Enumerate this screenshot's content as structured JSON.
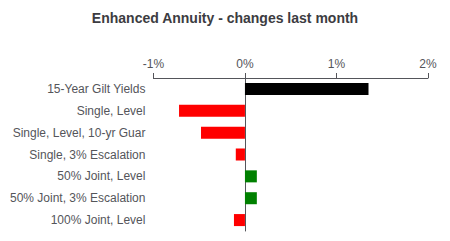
{
  "chart_data": {
    "type": "bar",
    "orientation": "horizontal",
    "title": "Enhanced Annuity - changes last month",
    "categories": [
      "100% Joint, Level",
      "50% Joint, 3% Escalation",
      "50% Joint, Level",
      "Single, 3% Escalation",
      "Single, Level, 10-yr Guar",
      "Single, Level",
      "15-Year Gilt Yields"
    ],
    "values": [
      -0.12,
      0.13,
      0.13,
      -0.1,
      -0.48,
      -0.72,
      1.35
    ],
    "colors": [
      "#ff0000",
      "#008000",
      "#008000",
      "#ff0000",
      "#ff0000",
      "#ff0000",
      "#000000"
    ],
    "xlim": [
      -1.0,
      2.0
    ],
    "xticks": [
      {
        "value": -1.0,
        "label": "-1%"
      },
      {
        "value": 0.0,
        "label": "0%"
      },
      {
        "value": 1.0,
        "label": "1%"
      },
      {
        "value": 2.0,
        "label": "2%"
      }
    ],
    "grid": false
  }
}
